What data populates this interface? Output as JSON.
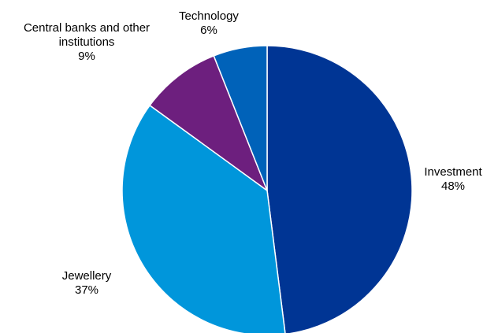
{
  "chart_data": {
    "type": "pie",
    "title": "",
    "slices": [
      {
        "label": "Investment",
        "percent_label": "48%",
        "value": 48,
        "color": "#003594"
      },
      {
        "label": "Jewellery",
        "percent_label": "37%",
        "value": 37,
        "color": "#0096db"
      },
      {
        "label": "Central banks and other institutions",
        "label_lines": [
          "Central banks and other",
          "institutions"
        ],
        "percent_label": "9%",
        "value": 9,
        "color": "#6d1f7e"
      },
      {
        "label": "Technology",
        "percent_label": "6%",
        "value": 6,
        "color": "#0062b9"
      }
    ],
    "start_angle_deg": 0,
    "direction": "clockwise",
    "slice_border_color": "#ffffff",
    "legend": "none (direct labels)"
  }
}
